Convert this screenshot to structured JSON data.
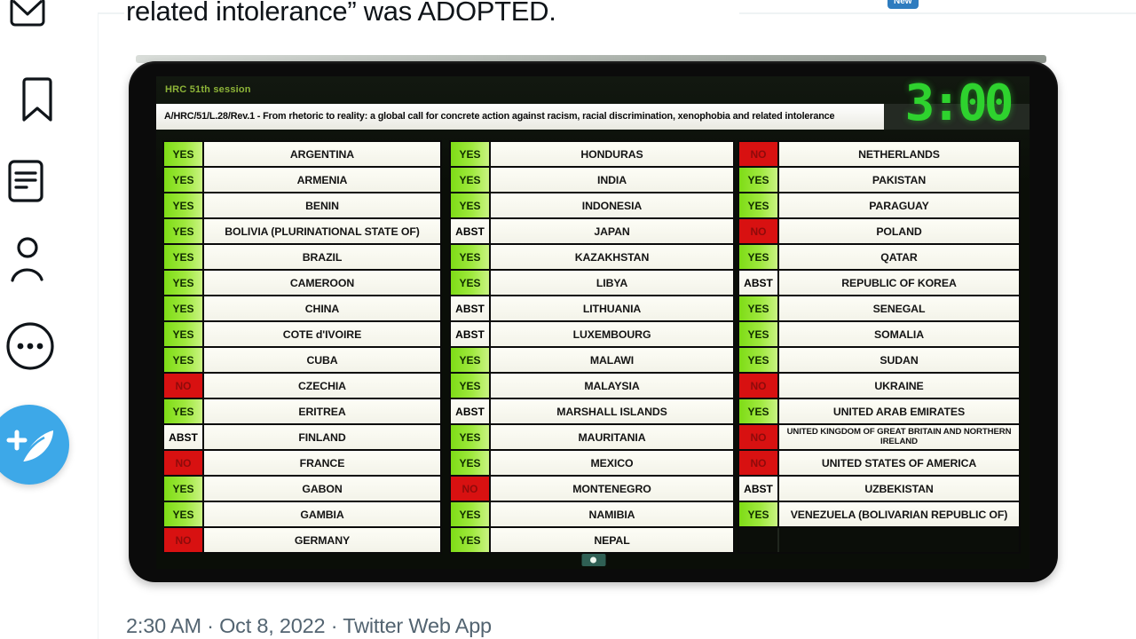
{
  "tweet": {
    "text": "related intolerance” was ADOPTED.",
    "new_badge": "New",
    "timestamp": "2:30 AM · Oct 8, 2022 · Twitter Web App"
  },
  "sidebar": {
    "icons": [
      "messages-icon",
      "bookmarks-icon",
      "lists-icon",
      "profile-icon",
      "more-icon",
      "compose-button"
    ]
  },
  "board": {
    "session": "HRC 51th session",
    "resolution": "A/HRC/51/L.28/Rev.1 - From rhetoric to reality: a global call for concrete action against racism, racial discrimination, xenophobia and related intolerance",
    "timer": "3:00",
    "colors": {
      "yes": "#8fe22f",
      "no": "#d81111",
      "abstain_bg": "#f7f7ef",
      "timer_green": "#2ed22e",
      "screen_bg": "#0a0e08"
    },
    "columns": [
      [
        {
          "vote": "YES",
          "country": "ARGENTINA"
        },
        {
          "vote": "YES",
          "country": "ARMENIA"
        },
        {
          "vote": "YES",
          "country": "BENIN"
        },
        {
          "vote": "YES",
          "country": "BOLIVIA (PLURINATIONAL STATE OF)"
        },
        {
          "vote": "YES",
          "country": "BRAZIL"
        },
        {
          "vote": "YES",
          "country": "CAMEROON"
        },
        {
          "vote": "YES",
          "country": "CHINA"
        },
        {
          "vote": "YES",
          "country": "COTE d'IVOIRE"
        },
        {
          "vote": "YES",
          "country": "CUBA"
        },
        {
          "vote": "NO",
          "country": "CZECHIA"
        },
        {
          "vote": "YES",
          "country": "ERITREA"
        },
        {
          "vote": "ABST",
          "country": "FINLAND"
        },
        {
          "vote": "NO",
          "country": "FRANCE"
        },
        {
          "vote": "YES",
          "country": "GABON"
        },
        {
          "vote": "YES",
          "country": "GAMBIA"
        },
        {
          "vote": "NO",
          "country": "GERMANY"
        }
      ],
      [
        {
          "vote": "YES",
          "country": "HONDURAS"
        },
        {
          "vote": "YES",
          "country": "INDIA"
        },
        {
          "vote": "YES",
          "country": "INDONESIA"
        },
        {
          "vote": "ABST",
          "country": "JAPAN"
        },
        {
          "vote": "YES",
          "country": "KAZAKHSTAN"
        },
        {
          "vote": "YES",
          "country": "LIBYA"
        },
        {
          "vote": "ABST",
          "country": "LITHUANIA"
        },
        {
          "vote": "ABST",
          "country": "LUXEMBOURG"
        },
        {
          "vote": "YES",
          "country": "MALAWI"
        },
        {
          "vote": "YES",
          "country": "MALAYSIA"
        },
        {
          "vote": "ABST",
          "country": "MARSHALL ISLANDS"
        },
        {
          "vote": "YES",
          "country": "MAURITANIA"
        },
        {
          "vote": "YES",
          "country": "MEXICO"
        },
        {
          "vote": "NO",
          "country": "MONTENEGRO"
        },
        {
          "vote": "YES",
          "country": "NAMIBIA"
        },
        {
          "vote": "YES",
          "country": "NEPAL"
        }
      ],
      [
        {
          "vote": "NO",
          "country": "NETHERLANDS"
        },
        {
          "vote": "YES",
          "country": "PAKISTAN"
        },
        {
          "vote": "YES",
          "country": "PARAGUAY"
        },
        {
          "vote": "NO",
          "country": "POLAND"
        },
        {
          "vote": "YES",
          "country": "QATAR"
        },
        {
          "vote": "ABST",
          "country": "REPUBLIC OF KOREA"
        },
        {
          "vote": "YES",
          "country": "SENEGAL"
        },
        {
          "vote": "YES",
          "country": "SOMALIA"
        },
        {
          "vote": "YES",
          "country": "SUDAN"
        },
        {
          "vote": "NO",
          "country": "UKRAINE"
        },
        {
          "vote": "YES",
          "country": "UNITED ARAB EMIRATES"
        },
        {
          "vote": "NO",
          "country": "UNITED KINGDOM OF GREAT BRITAIN AND NORTHERN IRELAND"
        },
        {
          "vote": "NO",
          "country": "UNITED STATES OF AMERICA"
        },
        {
          "vote": "ABST",
          "country": "UZBEKISTAN"
        },
        {
          "vote": "YES",
          "country": "VENEZUELA (BOLIVARIAN REPUBLIC OF)"
        },
        {
          "vote": "",
          "country": ""
        }
      ]
    ]
  }
}
